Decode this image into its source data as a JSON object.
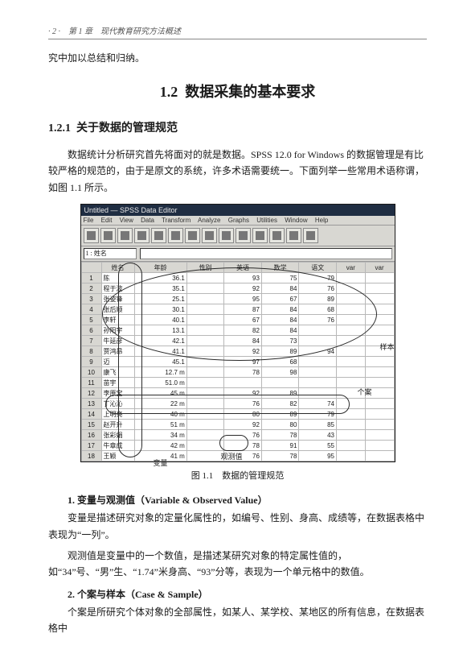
{
  "header": {
    "running": "· 2 ·　第 1 章　现代教育研究方法概述",
    "cont_line": "究中加以总结和归纳。"
  },
  "section": {
    "number": "1.2",
    "title": "数据采集的基本要求"
  },
  "subsection": {
    "number": "1.2.1",
    "title": "关于数据的管理规范"
  },
  "paragraphs": {
    "p1": "数据统计分析研究首先将面对的就是数据。SPSS 12.0 for Windows 的数据管理是有比较严格的规范的，由于是原文的系统，许多术语需要统一。下面列举一些常用术语称谓，如图 1.1 所示。"
  },
  "figure": {
    "titlebar": "Untitled — SPSS Data Editor",
    "menu": [
      "File",
      "Edit",
      "View",
      "Data",
      "Transform",
      "Analyze",
      "Graphs",
      "Utilities",
      "Window",
      "Help"
    ],
    "field_label": "1 : 姓名",
    "columns": [
      "",
      "姓名",
      "年龄",
      "性别",
      "英语",
      "数学",
      "语文",
      "var",
      "var"
    ],
    "rows": [
      [
        "1",
        "陈",
        "36.1",
        "",
        "93",
        "75",
        "79",
        "",
        ""
      ],
      [
        "2",
        "程于波",
        "35.1",
        "",
        "92",
        "84",
        "76",
        "",
        ""
      ],
      [
        "3",
        "张姿锋",
        "25.1",
        "",
        "95",
        "67",
        "89",
        "",
        ""
      ],
      [
        "4",
        "张后顺",
        "30.1",
        "",
        "87",
        "84",
        "68",
        "",
        ""
      ],
      [
        "5",
        "李轩",
        "40.1",
        "",
        "67",
        "84",
        "76",
        "",
        ""
      ],
      [
        "6",
        "孙阳宇",
        "13.1",
        "",
        "82",
        "84",
        "",
        "",
        ""
      ],
      [
        "7",
        "牛延彦",
        "42.1",
        "",
        "84",
        "73",
        "",
        "",
        ""
      ],
      [
        "8",
        "贾鸿昂",
        "41.1",
        "",
        "92",
        "89",
        "94",
        "",
        ""
      ],
      [
        "9",
        "迈",
        "45.1",
        "",
        "97",
        "68",
        "",
        "",
        ""
      ],
      [
        "10",
        "康飞",
        "12.7 m",
        "",
        "78",
        "98",
        "",
        "",
        ""
      ],
      [
        "11",
        "苗宇",
        "51.0 m",
        "",
        "",
        "",
        "",
        "",
        ""
      ],
      [
        "12",
        "李原宝",
        "45 m",
        "",
        "92",
        "89",
        "",
        "",
        ""
      ],
      [
        "13",
        "丁沁沁",
        "22 m",
        "",
        "76",
        "82",
        "74",
        "",
        ""
      ],
      [
        "14",
        "上明亮",
        "40 m",
        "",
        "80",
        "89",
        "79",
        "",
        ""
      ],
      [
        "15",
        "赵开升",
        "51 m",
        "",
        "92",
        "80",
        "85",
        "",
        ""
      ],
      [
        "16",
        "张彩娟",
        "34 m",
        "",
        "76",
        "78",
        "43",
        "",
        ""
      ],
      [
        "17",
        "牛章成",
        "42 m",
        "",
        "78",
        "91",
        "55",
        "",
        ""
      ],
      [
        "18",
        "王颖",
        "41 m",
        "",
        "76",
        "78",
        "95",
        "",
        ""
      ]
    ],
    "annotations": {
      "sample": "样本",
      "case": "个案",
      "variable": "变量",
      "observed": "观测值"
    },
    "caption": "图 1.1　数据的管理规范"
  },
  "body": {
    "item1_head": "1. 变量与观测值（Variable & Observed Value）",
    "item1_p1": "变量是描述研究对象的定量化属性的，如编号、性别、身高、成绩等，在数据表格中表现为“一列”。",
    "item1_p2": "观测值是变量中的一个数值，是描述某研究对象的特定属性值的，如“34”号、“男”生、“1.74”米身高、“93”分等，表现为一个单元格中的数值。",
    "item2_head": "2. 个案与样本（Case & Sample）",
    "item2_p1": "个案是所研究个体对象的全部属性，如某人、某学校、某地区的所有信息，在数据表格中"
  }
}
